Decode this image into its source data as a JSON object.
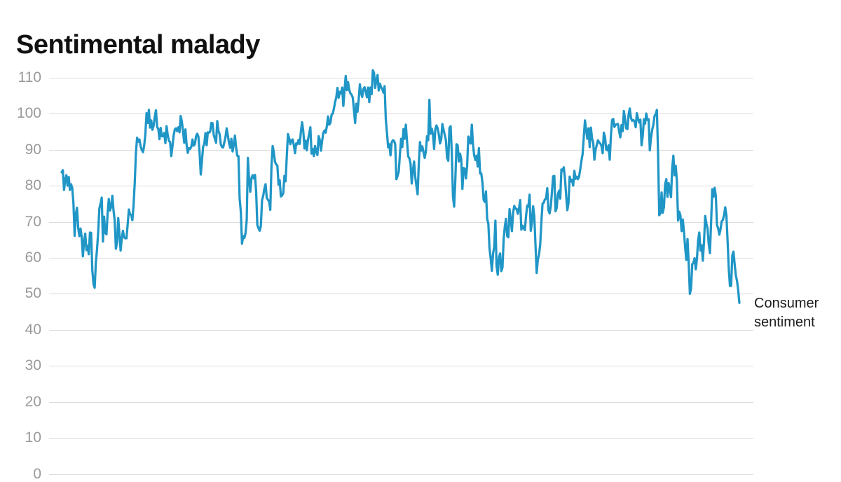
{
  "page": {
    "title": "Sentimental malady"
  },
  "annotation": {
    "label": "Consumer sentiment"
  },
  "colors": {
    "line": "#2096c6",
    "grid": "#dcdcdc",
    "tick_label": "#9a9a9a",
    "title": "#111111",
    "annotation": "#1c1c1c",
    "background": "#ffffff"
  },
  "chart_data": {
    "type": "line",
    "title": "Sentimental malady",
    "ylabel": "",
    "xlabel": "",
    "ylim": [
      0,
      110
    ],
    "yticks": [
      110,
      100,
      90,
      80,
      70,
      60,
      50,
      40,
      30,
      20,
      10,
      0
    ],
    "grid": "horizontal",
    "legend_position": "right-of-line-end",
    "x_axis_labels_visible": false,
    "series": [
      {
        "name": "Consumer sentiment",
        "values": [
          83.7,
          84.3,
          78.8,
          81.6,
          82.9,
          80.0,
          82.4,
          78.8,
          80.4,
          79.3,
          75.0,
          66.1,
          72.1,
          73.9,
          68.4,
          66.0,
          68.1,
          65.8,
          60.4,
          64.5,
          66.7,
          62.1,
          63.3,
          61.0,
          67.0,
          66.9,
          56.5,
          52.7,
          51.7,
          58.7,
          62.3,
          67.3,
          73.7,
          75.0,
          76.7,
          64.5,
          71.4,
          66.9,
          66.5,
          72.4,
          76.3,
          73.1,
          74.1,
          77.2,
          73.1,
          70.3,
          62.5,
          64.3,
          71.0,
          66.5,
          62.0,
          65.5,
          67.5,
          65.7,
          65.4,
          65.4,
          69.3,
          73.4,
          72.1,
          71.9,
          70.4,
          74.6,
          80.8,
          89.1,
          93.3,
          92.2,
          92.8,
          90.9,
          89.9,
          89.3,
          91.1,
          94.2,
          100.1,
          97.4,
          101.0,
          96.1,
          98.1,
          95.5,
          96.6,
          99.1,
          100.9,
          96.3,
          95.7,
          92.9,
          96.0,
          93.7,
          93.7,
          94.6,
          91.8,
          96.5,
          94.0,
          92.4,
          92.1,
          88.2,
          90.9,
          93.9,
          95.6,
          95.9,
          95.1,
          96.2,
          94.8,
          99.3,
          97.7,
          94.9,
          91.9,
          95.6,
          91.4,
          89.1,
          90.4,
          90.2,
          90.8,
          92.8,
          91.1,
          91.5,
          93.7,
          94.4,
          93.6,
          89.3,
          83.1,
          86.8,
          90.8,
          91.6,
          94.6,
          91.2,
          94.8,
          94.7,
          95.0,
          97.4,
          97.3,
          94.1,
          93.0,
          91.9,
          97.9,
          95.2,
          94.3,
          91.5,
          90.7,
          90.6,
          92.0,
          93.5,
          95.9,
          93.9,
          91.8,
          90.5,
          93.0,
          89.5,
          91.3,
          93.9,
          90.6,
          88.3,
          88.2,
          76.4,
          72.8,
          63.9,
          66.0,
          65.5,
          66.8,
          70.4,
          87.7,
          81.8,
          78.3,
          82.1,
          82.9,
          82.0,
          83.0,
          78.3,
          69.1,
          68.2,
          67.5,
          68.8,
          76.0,
          77.2,
          79.2,
          80.4,
          76.6,
          76.1,
          75.6,
          73.3,
          85.3,
          91.0,
          89.3,
          86.6,
          85.9,
          85.6,
          80.3,
          81.5,
          77.0,
          77.3,
          77.9,
          82.7,
          81.2,
          88.2,
          94.3,
          93.2,
          91.5,
          92.6,
          92.8,
          91.2,
          89.0,
          91.7,
          91.5,
          92.7,
          91.6,
          95.1,
          97.6,
          95.1,
          90.3,
          92.5,
          89.8,
          92.7,
          94.4,
          96.2,
          88.9,
          90.2,
          88.2,
          91.0,
          89.3,
          88.5,
          93.7,
          92.7,
          89.7,
          92.4,
          94.7,
          95.3,
          94.7,
          96.5,
          99.2,
          96.9,
          97.4,
          99.7,
          100.0,
          101.4,
          103.2,
          104.5,
          107.1,
          104.4,
          106.0,
          105.6,
          107.2,
          102.1,
          106.6,
          110.4,
          106.5,
          108.7,
          106.5,
          105.6,
          105.2,
          104.4,
          100.9,
          97.4,
          102.7,
          100.5,
          103.9,
          108.1,
          105.7,
          104.6,
          106.8,
          107.3,
          106.0,
          104.5,
          107.2,
          103.2,
          107.2,
          105.4,
          112.0,
          111.3,
          107.1,
          109.2,
          110.7,
          106.4,
          108.3,
          107.3,
          106.8,
          105.8,
          107.6,
          98.4,
          94.7,
          90.6,
          91.5,
          88.4,
          92.0,
          92.6,
          92.4,
          91.5,
          81.8,
          82.7,
          83.9,
          88.8,
          93.0,
          90.7,
          95.7,
          93.0,
          96.9,
          92.4,
          88.1,
          87.6,
          86.1,
          80.6,
          84.2,
          86.7,
          82.4,
          79.9,
          77.6,
          86.0,
          92.1,
          89.7,
          90.9,
          89.3,
          87.7,
          89.6,
          93.7,
          92.6,
          103.8,
          94.4,
          95.8,
          94.2,
          90.2,
          95.6,
          96.7,
          95.9,
          94.2,
          91.7,
          92.8,
          97.1,
          95.5,
          94.1,
          92.6,
          87.7,
          86.9,
          96.0,
          96.5,
          89.1,
          76.9,
          74.2,
          81.6,
          91.5,
          91.2,
          86.7,
          88.9,
          87.4,
          79.1,
          84.9,
          84.7,
          82.0,
          85.4,
          93.6,
          92.1,
          91.7,
          96.9,
          91.3,
          88.4,
          87.1,
          88.3,
          85.3,
          90.4,
          83.4,
          83.4,
          80.9,
          76.1,
          75.5,
          78.4,
          70.8,
          69.5,
          62.6,
          59.8,
          56.4,
          61.2,
          63.0,
          70.3,
          57.6,
          55.3,
          60.1,
          61.2,
          56.3,
          57.3,
          65.1,
          68.7,
          70.8,
          66.0,
          65.7,
          73.5,
          70.6,
          67.4,
          72.5,
          74.4,
          73.6,
          73.6,
          72.2,
          73.6,
          76.0,
          67.8,
          68.9,
          68.2,
          67.7,
          71.6,
          74.5,
          74.2,
          77.5,
          67.5,
          69.8,
          74.3,
          71.5,
          63.7,
          55.8,
          59.5,
          60.8,
          63.7,
          69.9,
          75.0,
          75.3,
          76.2,
          76.4,
          79.3,
          73.2,
          72.3,
          74.3,
          78.3,
          82.6,
          82.7,
          72.9,
          73.8,
          77.6,
          78.6,
          76.4,
          84.5,
          84.1,
          85.1,
          82.1,
          77.5,
          73.2,
          75.1,
          82.5,
          81.2,
          81.6,
          80.0,
          84.1,
          81.9,
          82.5,
          81.8,
          82.5,
          84.6,
          86.9,
          88.8,
          93.6,
          98.1,
          95.4,
          93.0,
          95.9,
          90.7,
          96.1,
          93.1,
          91.9,
          87.2,
          90.0,
          91.3,
          92.6,
          92.0,
          91.7,
          91.0,
          89.0,
          94.7,
          93.5,
          90.0,
          89.8,
          91.2,
          87.2,
          93.8,
          98.2,
          98.5,
          96.3,
          96.9,
          97.0,
          97.1,
          95.0,
          93.4,
          96.8,
          95.1,
          100.7,
          98.5,
          95.9,
          95.7,
          99.7,
          101.4,
          98.8,
          98.0,
          98.2,
          97.9,
          96.2,
          100.1,
          98.6,
          97.5,
          98.3,
          91.2,
          93.8,
          98.4,
          97.2,
          100.0,
          98.2,
          98.4,
          89.8,
          93.2,
          95.5,
          96.8,
          99.3,
          99.8,
          101.0,
          89.1,
          71.8,
          72.3,
          78.1,
          72.5,
          74.1,
          80.4,
          81.8,
          76.9,
          80.7,
          79.0,
          76.8,
          84.9,
          88.3,
          82.9,
          85.5,
          81.2,
          70.3,
          72.8,
          71.7,
          67.4,
          70.6,
          67.2,
          62.8,
          59.4,
          65.2,
          58.4,
          50.0,
          51.5,
          58.2,
          58.6,
          59.9,
          56.8,
          59.7,
          64.9,
          67.0,
          62.0,
          63.5,
          59.2,
          64.4,
          71.6,
          69.5,
          68.1,
          63.8,
          61.3,
          69.7,
          79.0,
          76.9,
          79.4,
          77.2,
          69.1,
          68.2,
          66.4,
          67.9,
          70.1,
          70.5,
          71.8,
          74.0,
          71.7,
          64.7,
          57.0,
          52.2,
          52.2,
          60.7,
          61.7,
          58.2,
          55.1,
          53.6,
          51.0,
          47.5
        ]
      }
    ]
  }
}
